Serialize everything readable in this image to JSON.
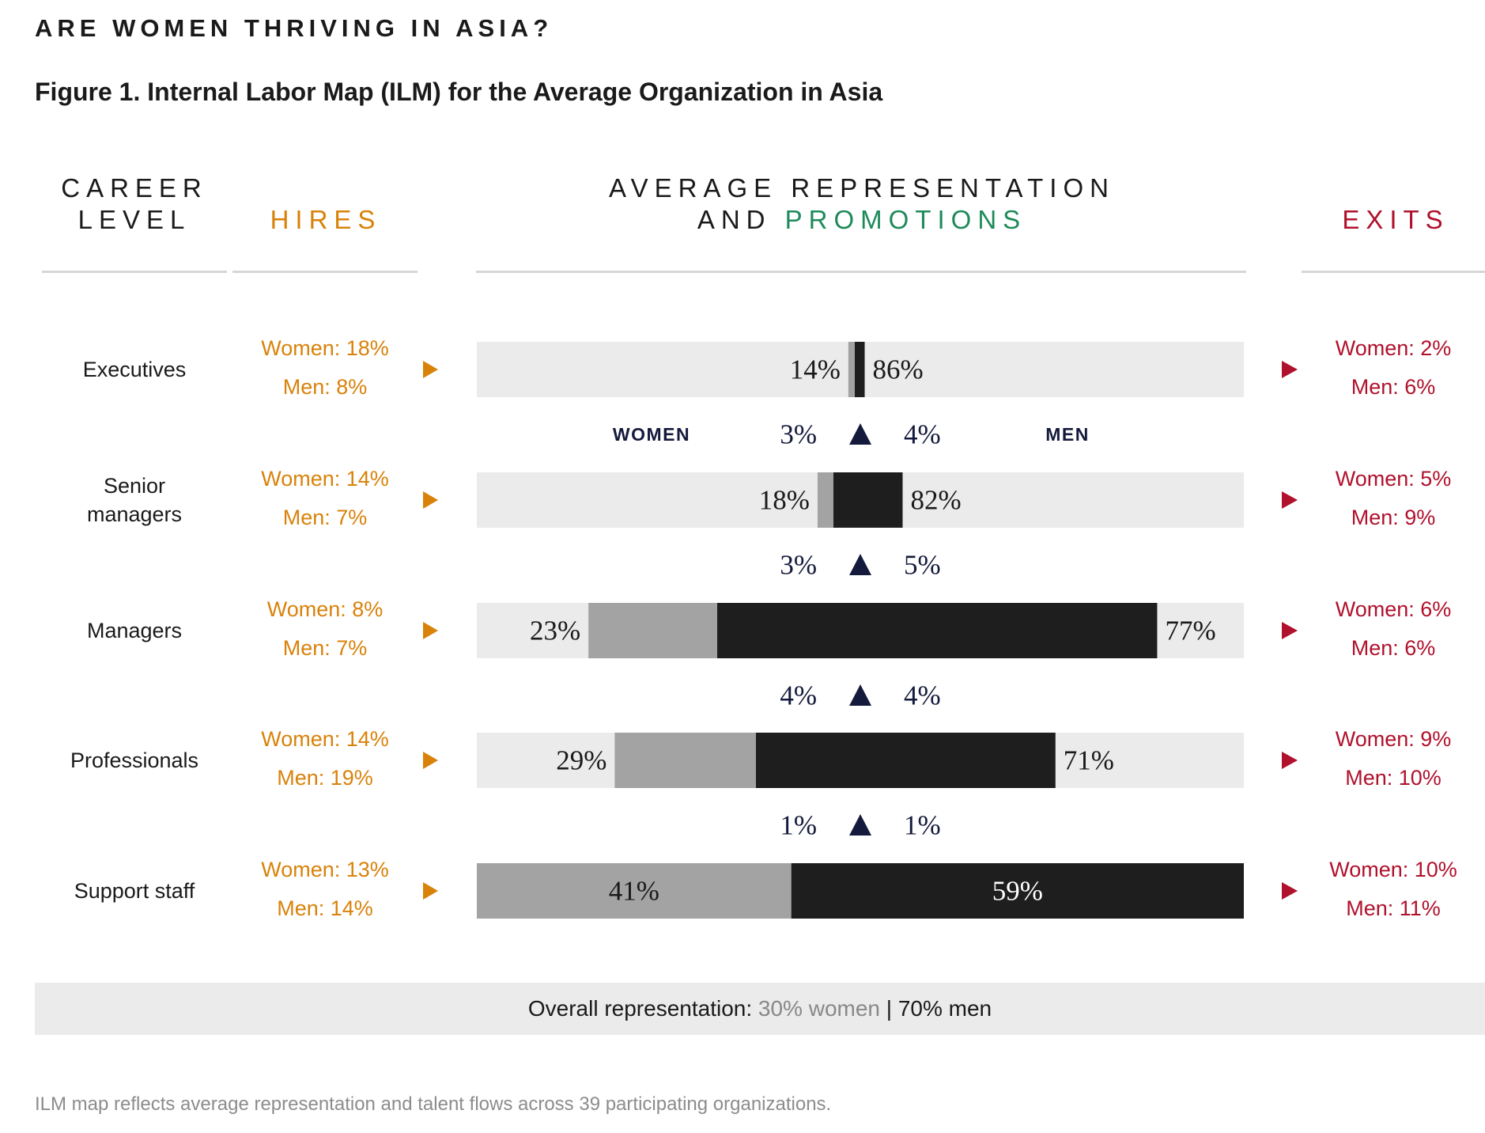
{
  "supertitle": "ARE WOMEN THRIVING IN ASIA?",
  "title": "Figure 1. Internal Labor Map (ILM) for the Average Organization in Asia",
  "headers": {
    "career_line1": "CAREER",
    "career_line2": "LEVEL",
    "hires": "HIRES",
    "avg_line1": "AVERAGE REPRESENTATION",
    "avg_line2_and": "AND ",
    "avg_line2_promotions": "PROMOTIONS",
    "exits": "EXITS"
  },
  "gender_labels": {
    "women": "WOMEN",
    "men": "MEN"
  },
  "overall": {
    "prefix": "Overall representation: ",
    "women": "30% women",
    "sep": " | ",
    "men": "70% men"
  },
  "note": "ILM map reflects average representation and talent flows across 39 participating organizations.",
  "colors": {
    "hires": "#d9820a",
    "exits": "#b0112c",
    "promotions": "#1e8a5a",
    "women_bar": "#a3a3a3",
    "men_bar": "#1e1e1e",
    "track": "#ebebeb",
    "promo_text": "#141a3c"
  },
  "chart_data": {
    "type": "bar",
    "orientation": "horizontal",
    "stacked": true,
    "categories": [
      "Executives",
      "Senior managers",
      "Managers",
      "Professionals",
      "Support staff"
    ],
    "series": [
      {
        "name": "WOMEN",
        "values": [
          14,
          18,
          23,
          29,
          41
        ]
      },
      {
        "name": "MEN",
        "values": [
          86,
          82,
          77,
          71,
          59
        ]
      }
    ],
    "rows": [
      {
        "level_lines": [
          "Executives"
        ],
        "women": 14,
        "men": 86,
        "women_label": "14%",
        "men_label": "86%",
        "hires_women": "Women: 18%",
        "hires_men": "Men: 8%",
        "exits_women": "Women: 2%",
        "exits_men": "Men: 6%"
      },
      {
        "level_lines": [
          "Senior",
          "managers"
        ],
        "women": 18,
        "men": 82,
        "women_label": "18%",
        "men_label": "82%",
        "hires_women": "Women: 14%",
        "hires_men": "Men: 7%",
        "exits_women": "Women: 5%",
        "exits_men": "Men: 9%"
      },
      {
        "level_lines": [
          "Managers"
        ],
        "women": 23,
        "men": 77,
        "women_label": "23%",
        "men_label": "77%",
        "hires_women": "Women: 8%",
        "hires_men": "Men: 7%",
        "exits_women": "Women: 6%",
        "exits_men": "Men: 6%"
      },
      {
        "level_lines": [
          "Professionals"
        ],
        "women": 29,
        "men": 71,
        "women_label": "29%",
        "men_label": "71%",
        "hires_women": "Women: 14%",
        "hires_men": "Men: 19%",
        "exits_women": "Women: 9%",
        "exits_men": "Men: 10%"
      },
      {
        "level_lines": [
          "Support staff"
        ],
        "women": 41,
        "men": 59,
        "women_label": "41%",
        "men_label": "59%",
        "hires_women": "Women: 13%",
        "hires_men": "Men: 14%",
        "exits_women": "Women: 10%",
        "exits_men": "Men: 11%"
      }
    ],
    "promotions": [
      {
        "from": "Senior managers",
        "to": "Executives",
        "women": "3%",
        "men": "4%"
      },
      {
        "from": "Managers",
        "to": "Senior managers",
        "women": "3%",
        "men": "5%"
      },
      {
        "from": "Professionals",
        "to": "Managers",
        "women": "4%",
        "men": "4%"
      },
      {
        "from": "Support staff",
        "to": "Professionals",
        "women": "1%",
        "men": "1%"
      }
    ],
    "xlim": [
      0,
      100
    ]
  }
}
